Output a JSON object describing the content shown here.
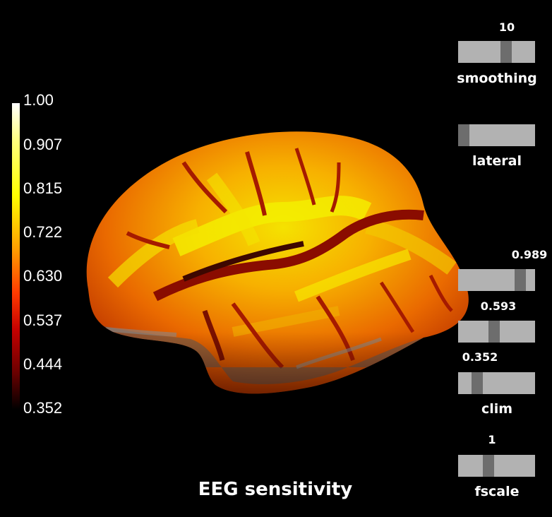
{
  "title": "EEG sensitivity",
  "colorbar": {
    "ticks": [
      "1.00",
      "0.907",
      "0.815",
      "0.722",
      "0.630",
      "0.537",
      "0.444",
      "0.352"
    ],
    "colormap": "hot"
  },
  "sliders": {
    "smoothing": {
      "label": "smoothing",
      "value": "10",
      "fraction": 0.64
    },
    "lateral": {
      "label": "lateral",
      "value": "",
      "fraction": 0.0
    },
    "clim_max": {
      "value": "0.989",
      "fraction": 0.86
    },
    "clim_mid": {
      "value": "0.593",
      "fraction": 0.46
    },
    "clim_min": {
      "value": "0.352",
      "fraction": 0.2,
      "label": "clim"
    },
    "fscale": {
      "label": "fscale",
      "value": "1",
      "fraction": 0.38
    }
  },
  "colors": {
    "background": "#000000",
    "slider_track": "#b2b2b2",
    "slider_thumb": "#6d6d6d"
  }
}
